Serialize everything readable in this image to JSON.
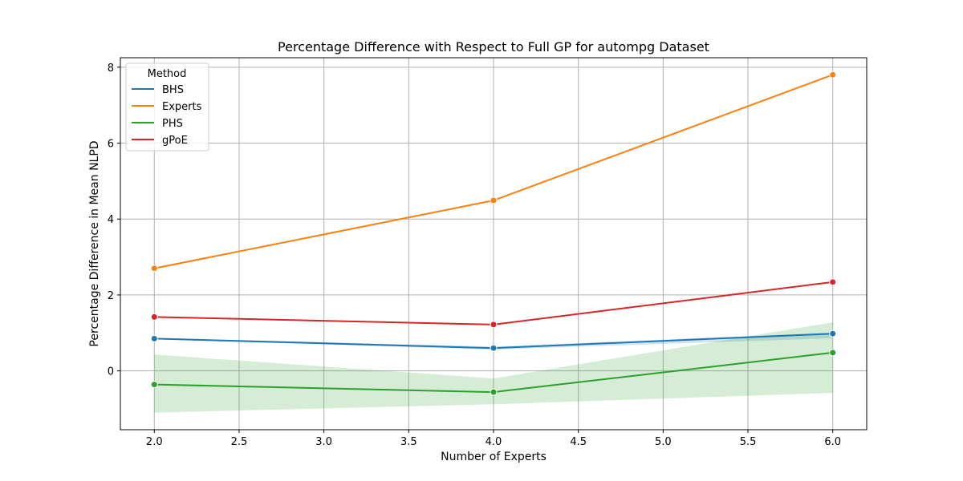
{
  "chart_data": {
    "type": "line",
    "title": "Percentage Difference with Respect to Full GP for autompg Dataset",
    "xlabel": "Number of Experts",
    "ylabel": "Percentage Difference in Mean NLPD",
    "xlim": [
      1.8,
      6.2
    ],
    "ylim": [
      -1.55,
      8.25
    ],
    "xticks": [
      2.0,
      2.5,
      3.0,
      3.5,
      4.0,
      4.5,
      5.0,
      5.5,
      6.0
    ],
    "xtick_labels": [
      "2.0",
      "2.5",
      "3.0",
      "3.5",
      "4.0",
      "4.5",
      "5.0",
      "5.5",
      "6.0"
    ],
    "yticks": [
      0,
      2,
      4,
      6,
      8
    ],
    "ytick_labels": [
      "0",
      "2",
      "4",
      "6",
      "8"
    ],
    "grid": true,
    "legend": {
      "title": "Method",
      "placement": "top-left"
    },
    "x": [
      2,
      4,
      6
    ],
    "series": [
      {
        "name": "BHS",
        "color": "#1f77b4",
        "values": [
          0.85,
          0.6,
          0.98
        ],
        "ci_low": [
          0.83,
          0.56,
          0.86
        ],
        "ci_high": [
          0.87,
          0.64,
          1.01
        ]
      },
      {
        "name": "Experts",
        "color": "#ff7f0e",
        "values": [
          2.7,
          4.49,
          7.8
        ],
        "ci_low": [
          2.7,
          4.49,
          7.8
        ],
        "ci_high": [
          2.7,
          4.49,
          7.8
        ]
      },
      {
        "name": "PHS",
        "color": "#2ca02c",
        "values": [
          -0.36,
          -0.56,
          0.48
        ],
        "ci_low": [
          -1.1,
          -0.88,
          -0.58
        ],
        "ci_high": [
          0.43,
          -0.2,
          1.28
        ]
      },
      {
        "name": "gPoE",
        "color": "#d62728",
        "values": [
          1.42,
          1.22,
          2.34
        ],
        "ci_low": [
          1.42,
          1.22,
          2.34
        ],
        "ci_high": [
          1.42,
          1.22,
          2.34
        ]
      }
    ]
  }
}
